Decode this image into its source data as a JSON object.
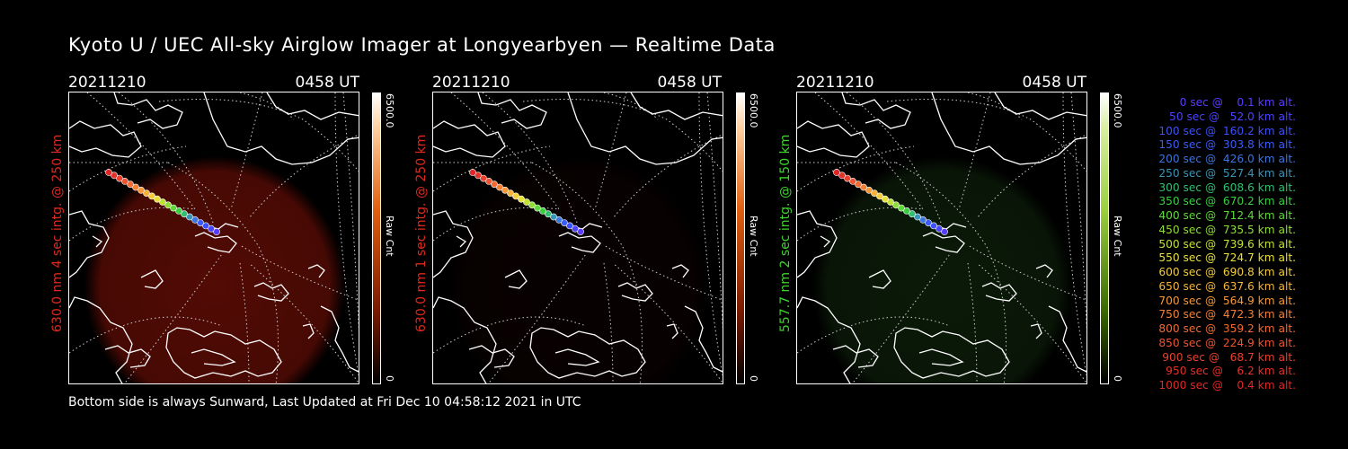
{
  "title": "Kyoto U / UEC All-sky Airglow Imager at Longyearbyen — Realtime Data",
  "footer": "Bottom side is always Sunward, Last Updated at Fri Dec 10 04:58:12 2021 in UTC",
  "panels": [
    {
      "date": "20211210",
      "time": "0458 UT",
      "ylabel": "630.0 nm  4 sec intg. @ 250 km",
      "ylabel_color": "#e0281c",
      "cbar_max": "6500.0",
      "cbar_min": "0",
      "cbar_unit": "Raw Cnt",
      "glow_color": "#8a1208",
      "glow_level": 0.6
    },
    {
      "date": "20211210",
      "time": "0458 UT",
      "ylabel": "630.0 nm  1 sec intg. @ 250 km",
      "ylabel_color": "#e0281c",
      "cbar_max": "6500.0",
      "cbar_min": "0",
      "cbar_unit": "Raw Cnt",
      "glow_color": "#2a0604",
      "glow_level": 0.2
    },
    {
      "date": "20211210",
      "time": "0458 UT",
      "ylabel": "557.7 nm  2 sec intg. @ 150 km",
      "ylabel_color": "#3ed42c",
      "cbar_max": "6500.0",
      "cbar_min": "0",
      "cbar_unit": "Raw Cnt",
      "glow_color": "#1f4a18",
      "glow_level": 0.35
    }
  ],
  "legend": [
    {
      "text": "   0 sec @    0.1 km alt.",
      "color": "#5a3cff"
    },
    {
      "text": "  50 sec @   52.0 km alt.",
      "color": "#4a44ff"
    },
    {
      "text": " 100 sec @  160.2 km alt.",
      "color": "#3c50ff"
    },
    {
      "text": " 150 sec @  303.8 km alt.",
      "color": "#3a5cf8"
    },
    {
      "text": " 200 sec @  426.0 km alt.",
      "color": "#3c74e0"
    },
    {
      "text": " 250 sec @  527.4 km alt.",
      "color": "#3a94b8"
    },
    {
      "text": " 300 sec @  608.6 km alt.",
      "color": "#30c070"
    },
    {
      "text": " 350 sec @  670.2 km alt.",
      "color": "#38d040"
    },
    {
      "text": " 400 sec @  712.4 km alt.",
      "color": "#5ed83a"
    },
    {
      "text": " 450 sec @  735.5 km alt.",
      "color": "#8ede36"
    },
    {
      "text": " 500 sec @  739.6 km alt.",
      "color": "#c0e234"
    },
    {
      "text": " 550 sec @  724.7 km alt.",
      "color": "#e8e03a"
    },
    {
      "text": " 600 sec @  690.8 km alt.",
      "color": "#f4cc3c"
    },
    {
      "text": " 650 sec @  637.6 km alt.",
      "color": "#f6b23a"
    },
    {
      "text": " 700 sec @  564.9 km alt.",
      "color": "#f69838"
    },
    {
      "text": " 750 sec @  472.3 km alt.",
      "color": "#f48036"
    },
    {
      "text": " 800 sec @  359.2 km alt.",
      "color": "#f26a32"
    },
    {
      "text": " 850 sec @  224.9 km alt.",
      "color": "#ee5430"
    },
    {
      "text": " 900 sec @   68.7 km alt.",
      "color": "#ea402c"
    },
    {
      "text": " 950 sec @    6.2 km alt.",
      "color": "#e6302a"
    },
    {
      "text": "1000 sec @    0.4 km alt.",
      "color": "#e22626"
    }
  ]
}
